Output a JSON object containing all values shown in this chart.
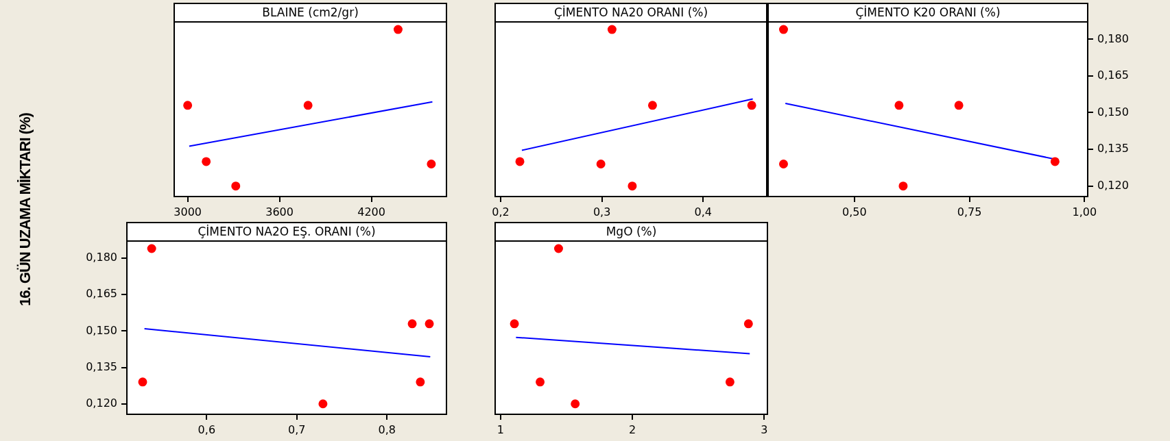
{
  "chart_data": [
    {
      "type": "scatter",
      "title": "BLAINE (cm2/gr)",
      "tick_labels": "x",
      "xlim": [
        2912,
        4690
      ],
      "xticks": [
        3000,
        3600,
        4200
      ],
      "ylim": [
        0.1157,
        0.1871
      ],
      "series": [
        {
          "type": "scatter",
          "marker": "circle",
          "color": "#ff0000",
          "x": [
            3000,
            3121,
            3314,
            3786,
            4374,
            4591
          ],
          "values": [
            0.153,
            0.13,
            0.12,
            0.153,
            0.184,
            0.129
          ]
        },
        {
          "type": "line",
          "marker": "none",
          "color": "#0000ff",
          "x": [
            3010,
            4598
          ],
          "values": [
            0.1363,
            0.1544
          ]
        }
      ]
    },
    {
      "type": "scatter",
      "title": "ÇİMENTO NA20 ORANI (%)",
      "tick_labels": "x",
      "xlim": [
        0.1946,
        0.4628
      ],
      "xticks": [
        {
          "value": 0.2,
          "label": "0,2"
        },
        {
          "value": 0.3,
          "label": "0,3"
        },
        {
          "value": 0.4,
          "label": "0,4"
        }
      ],
      "ylim": [
        0.1157,
        0.1871
      ],
      "series": [
        {
          "type": "scatter",
          "marker": "circle",
          "color": "#ff0000",
          "x": [
            0.219,
            0.299,
            0.31,
            0.33,
            0.35,
            0.448
          ],
          "values": [
            0.13,
            0.129,
            0.184,
            0.12,
            0.153,
            0.153
          ]
        },
        {
          "type": "line",
          "marker": "none",
          "color": "#0000ff",
          "x": [
            0.221,
            0.449
          ],
          "values": [
            0.1346,
            0.1556
          ]
        }
      ]
    },
    {
      "type": "scatter",
      "title": "ÇİMENTO K20 ORANI (%)",
      "xlim": [
        0.3125,
        1.007
      ],
      "xticks": [
        {
          "value": 0.5,
          "label": "0,50"
        },
        {
          "value": 0.75,
          "label": "0,75"
        },
        {
          "value": 1,
          "label": "1,00"
        }
      ],
      "y2lim": [
        0.1157,
        0.1871
      ],
      "y2ticks": [
        {
          "value": 0.12,
          "label": "0,120"
        },
        {
          "value": 0.135,
          "label": "0,135"
        },
        {
          "value": 0.15,
          "label": "0,150"
        },
        {
          "value": 0.165,
          "label": "0,165"
        },
        {
          "value": 0.18,
          "label": "0,180"
        }
      ],
      "series": [
        {
          "type": "scatter",
          "marker": "circle",
          "color": "#ff0000",
          "axis": "y2",
          "x": [
            0.346,
            0.346,
            0.597,
            0.606,
            0.727,
            0.936
          ],
          "values": [
            0.184,
            0.129,
            0.153,
            0.12,
            0.153,
            0.13
          ]
        },
        {
          "type": "line",
          "marker": "none",
          "color": "#0000ff",
          "axis": "y2",
          "x": [
            0.35,
            0.938
          ],
          "values": [
            0.1538,
            0.1309
          ]
        }
      ]
    },
    {
      "type": "scatter",
      "title": "ÇİMENTO NA2O EŞ. ORANI (%)",
      "ylabel": "16. GÜN UZAMA MİKTARI (%)",
      "xlim": [
        0.5115,
        0.866
      ],
      "xticks": [
        {
          "value": 0.6,
          "label": "0,6"
        },
        {
          "value": 0.7,
          "label": "0,7"
        },
        {
          "value": 0.8,
          "label": "0,8"
        }
      ],
      "ylim": [
        0.1157,
        0.1871
      ],
      "yticks": [
        {
          "value": 0.12,
          "label": "0,120"
        },
        {
          "value": 0.135,
          "label": "0,135"
        },
        {
          "value": 0.15,
          "label": "0,150"
        },
        {
          "value": 0.165,
          "label": "0,165"
        },
        {
          "value": 0.18,
          "label": "0,180"
        }
      ],
      "series": [
        {
          "type": "scatter",
          "marker": "circle",
          "color": "#ff0000",
          "x": [
            0.529,
            0.539,
            0.729,
            0.828,
            0.837,
            0.847
          ],
          "values": [
            0.129,
            0.184,
            0.12,
            0.153,
            0.129,
            0.153
          ]
        },
        {
          "type": "line",
          "marker": "none",
          "color": "#0000ff",
          "x": [
            0.531,
            0.848
          ],
          "values": [
            0.151,
            0.1394
          ]
        }
      ]
    },
    {
      "type": "scatter",
      "title": "MgO (%)",
      "tick_labels": "x",
      "xlim": [
        0.959,
        3.024
      ],
      "xticks": [
        1,
        2,
        3
      ],
      "ylim": [
        0.1157,
        0.1871
      ],
      "series": [
        {
          "type": "scatter",
          "marker": "circle",
          "color": "#ff0000",
          "x": [
            1.105,
            1.3,
            1.44,
            1.566,
            2.74,
            2.88
          ],
          "values": [
            0.153,
            0.129,
            0.184,
            0.12,
            0.129,
            0.153
          ]
        },
        {
          "type": "line",
          "marker": "none",
          "color": "#0000ff",
          "x": [
            1.117,
            2.89
          ],
          "values": [
            0.1474,
            0.1407
          ]
        }
      ]
    }
  ]
}
